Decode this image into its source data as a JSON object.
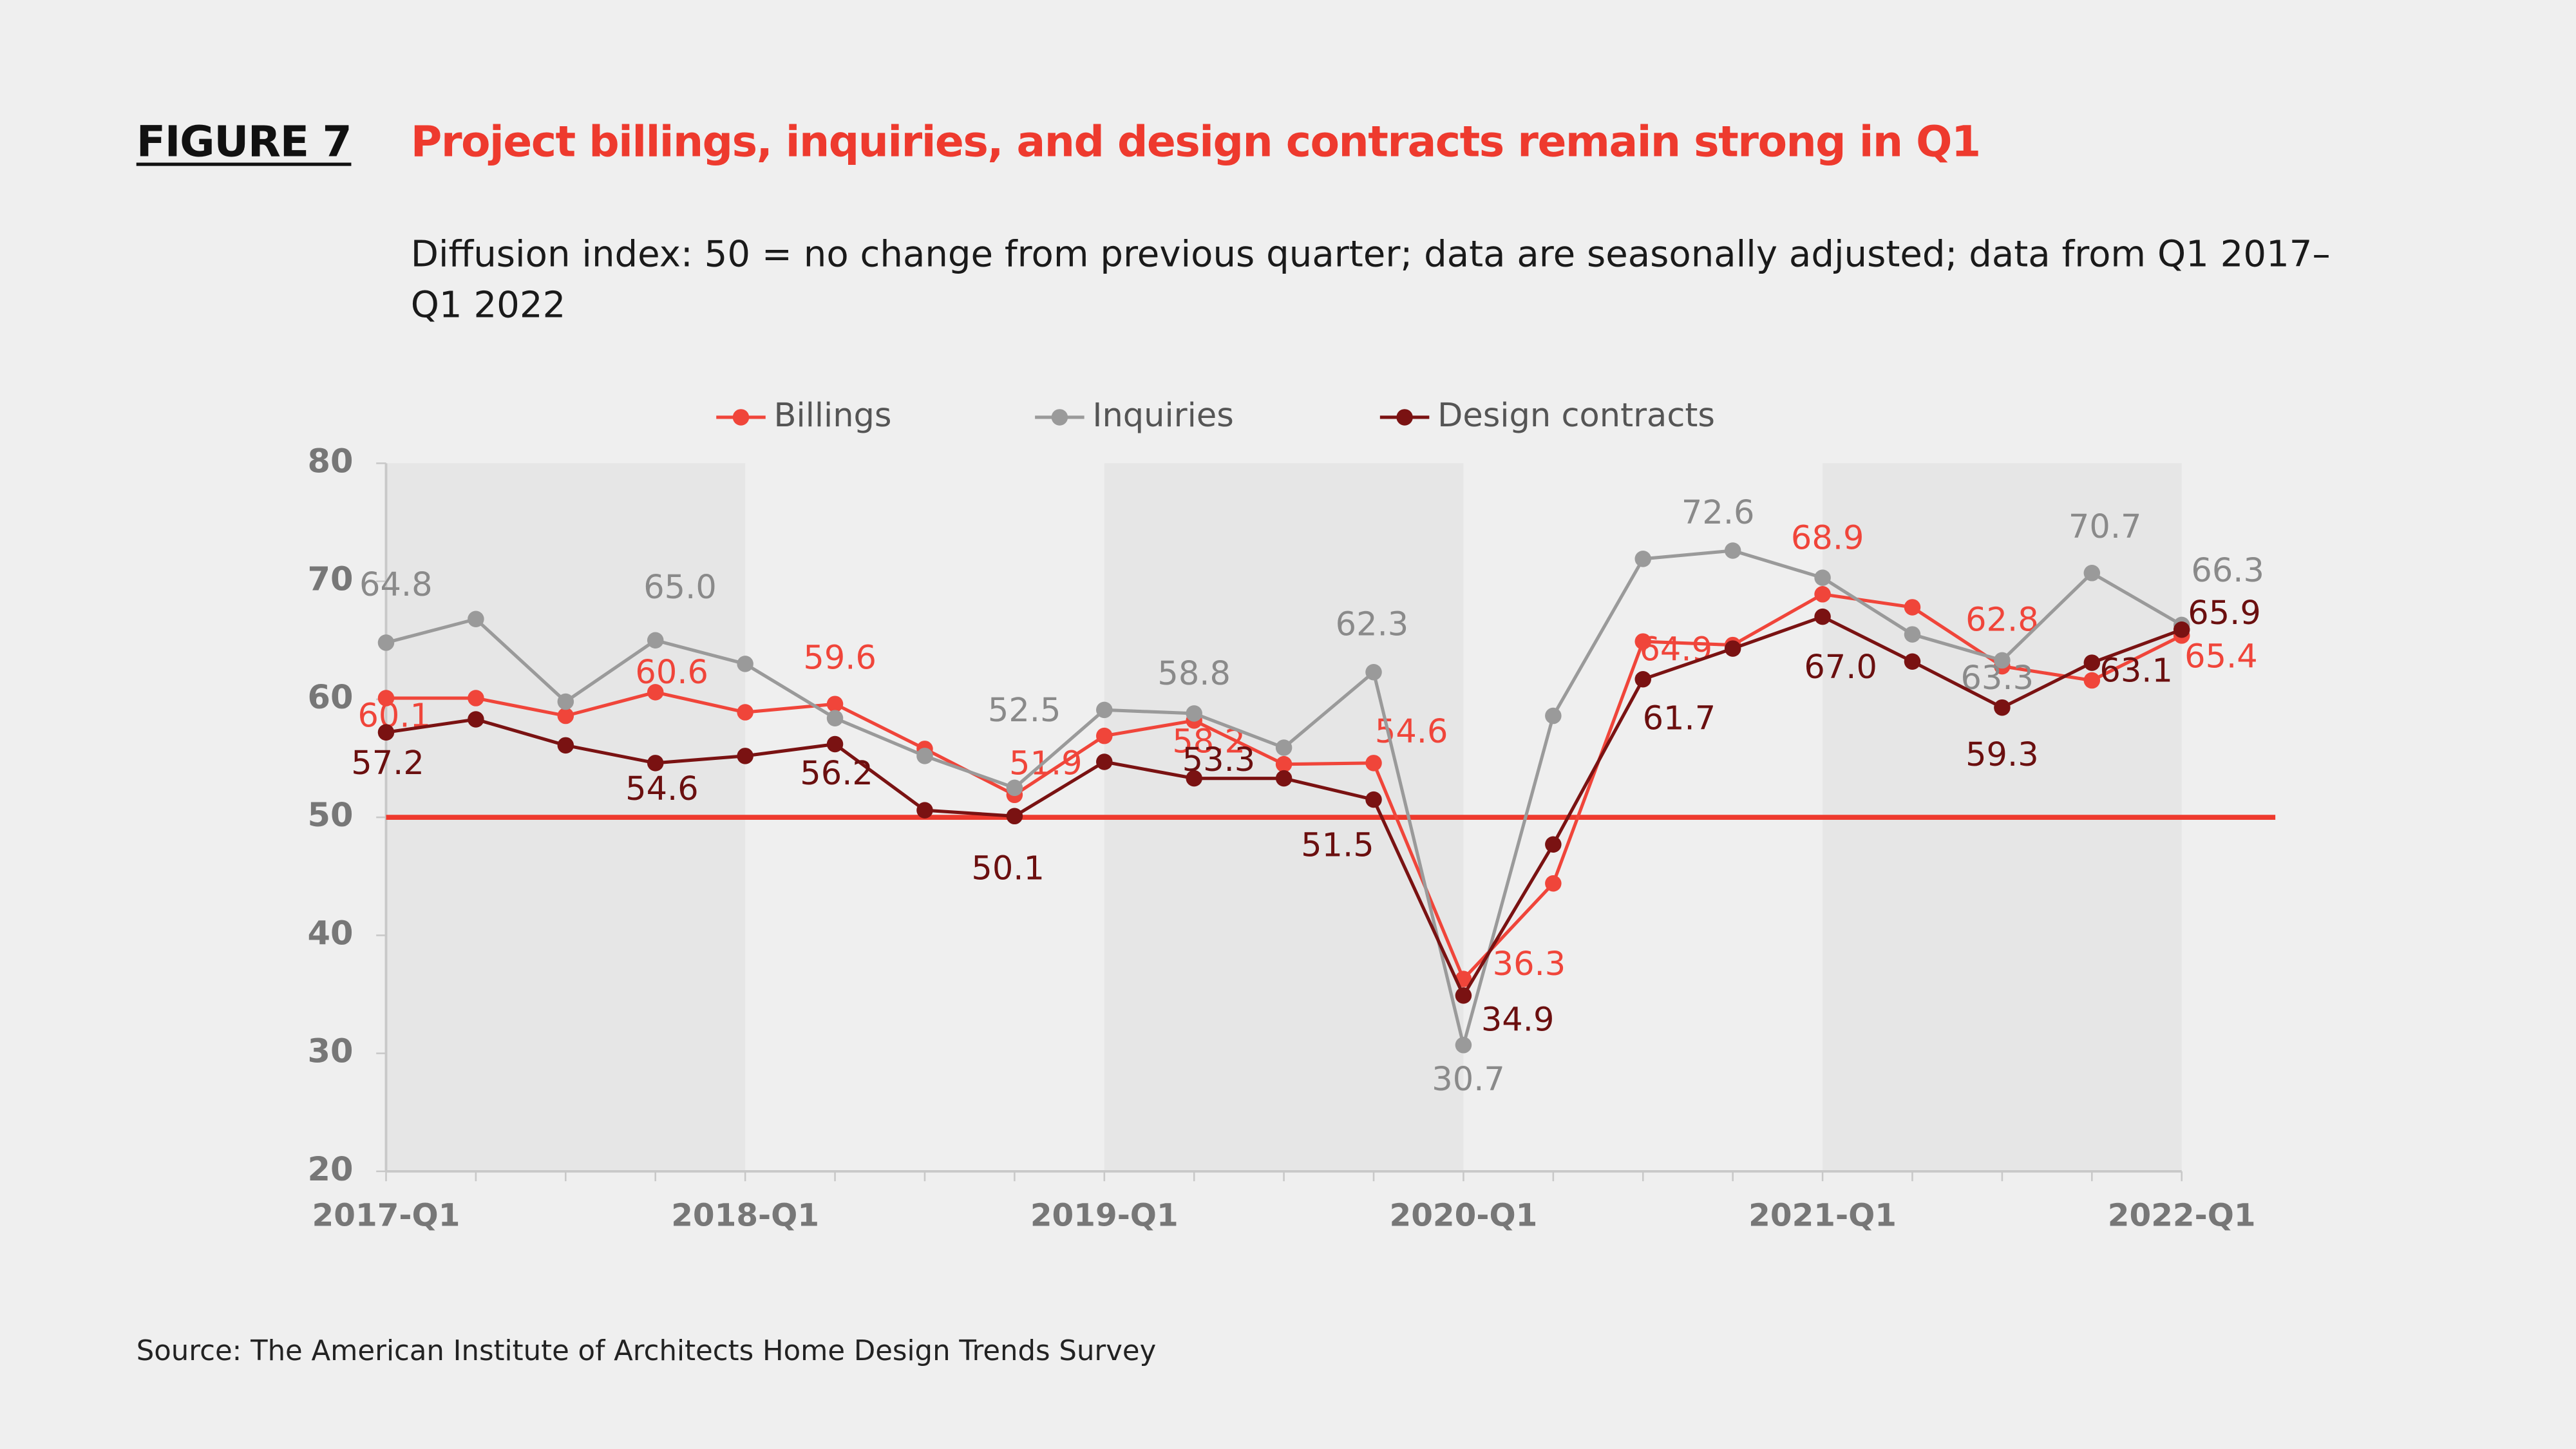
{
  "figure_label": "FIGURE 7",
  "source": "Source: The American Institute of Architects Home Design Trends Survey",
  "chart_data": {
    "type": "line",
    "title": "Project billings, inquiries, and design contracts remain strong in Q1",
    "subtitle": "Diffusion index: 50 = no change from previous quarter; data are seasonally adjusted; data from Q1 2017–Q1 2022",
    "categories": [
      "2017-Q1",
      null,
      null,
      null,
      "2018-Q1",
      null,
      null,
      null,
      "2019-Q1",
      null,
      null,
      null,
      "2020-Q1",
      null,
      null,
      null,
      "2021-Q1",
      null,
      null,
      null,
      "2022-Q1"
    ],
    "ylim": [
      20,
      80
    ],
    "yticks": [
      20,
      30,
      40,
      50,
      60,
      70,
      80
    ],
    "reference_line": {
      "value": 50,
      "color": "#ee3a2e"
    },
    "legend": "top",
    "series": [
      {
        "name": "Billings",
        "color": "#f0453a",
        "values": [
          60.1,
          60.1,
          58.6,
          60.6,
          58.9,
          59.6,
          55.8,
          51.9,
          56.9,
          58.2,
          54.5,
          54.6,
          36.3,
          44.4,
          64.9,
          64.6,
          68.9,
          67.8,
          62.8,
          61.6,
          65.4
        ],
        "value_labels": [
          "60.1",
          null,
          null,
          "60.6",
          null,
          "59.6",
          null,
          "51.9",
          null,
          "58.2",
          null,
          "54.6",
          "36.3",
          null,
          "64.9",
          null,
          "68.9",
          null,
          "62.8",
          null,
          "65.4"
        ]
      },
      {
        "name": "Inquiries",
        "color": "#9a9a9a",
        "values": [
          64.8,
          66.8,
          59.8,
          65.0,
          63.0,
          58.4,
          55.2,
          52.5,
          59.1,
          58.8,
          55.9,
          62.3,
          30.7,
          58.6,
          71.9,
          72.6,
          70.3,
          65.5,
          63.3,
          70.7,
          66.3
        ],
        "value_labels": [
          "64.8",
          null,
          null,
          "65.0",
          null,
          null,
          null,
          "52.5",
          null,
          "58.8",
          null,
          "62.3",
          "30.7",
          null,
          null,
          "72.6",
          null,
          null,
          "63.3",
          "70.7",
          "66.3"
        ]
      },
      {
        "name": "Design contracts",
        "color": "#7a1212",
        "values": [
          57.2,
          58.3,
          56.1,
          54.6,
          55.2,
          56.2,
          50.6,
          50.1,
          54.7,
          53.3,
          53.3,
          51.5,
          34.9,
          47.7,
          61.7,
          64.3,
          67.0,
          63.2,
          59.3,
          63.1,
          65.9
        ],
        "value_labels": [
          "57.2",
          null,
          null,
          "54.6",
          null,
          "56.2",
          null,
          "50.1",
          null,
          "53.3",
          null,
          "51.5",
          "34.9",
          null,
          "61.7",
          null,
          "67.0",
          null,
          "59.3",
          "63.1",
          "65.9"
        ]
      }
    ]
  }
}
